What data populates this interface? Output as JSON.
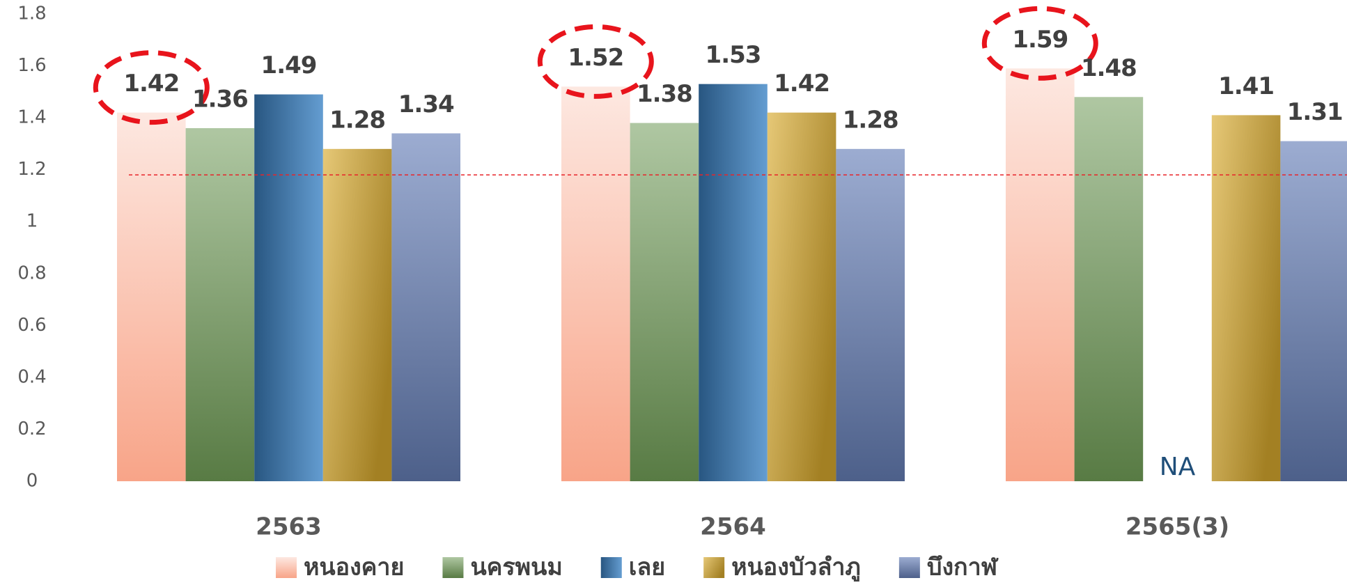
{
  "chart_data": {
    "type": "bar",
    "categories": [
      "2563",
      "2564",
      "2565(3)"
    ],
    "series": [
      {
        "name": "หนองคาย",
        "color": "#f8a488",
        "values": [
          1.42,
          1.52,
          1.59
        ]
      },
      {
        "name": "นครพนม",
        "color": "#6e9a55",
        "values": [
          1.36,
          1.38,
          1.48
        ]
      },
      {
        "name": "เลย",
        "color": "#3d85c6",
        "values": [
          1.49,
          1.53,
          null
        ],
        "value_labels": [
          "1.49",
          "1.53",
          "NA"
        ]
      },
      {
        "name": "หนองบัวลำภู",
        "color": "#d9aa2e",
        "values": [
          1.28,
          1.42,
          1.41
        ]
      },
      {
        "name": "บึงกาฬ",
        "color": "#6680b8",
        "values": [
          1.34,
          1.28,
          1.31
        ]
      }
    ],
    "ylim": [
      0,
      1.8
    ],
    "yticks": [
      0,
      0.2,
      0.4,
      0.6,
      0.8,
      1,
      1.2,
      1.4,
      1.6,
      1.8
    ],
    "reference_line": 1.18,
    "reference_color": "#e8242a",
    "grid": false,
    "legend": "bottom"
  }
}
